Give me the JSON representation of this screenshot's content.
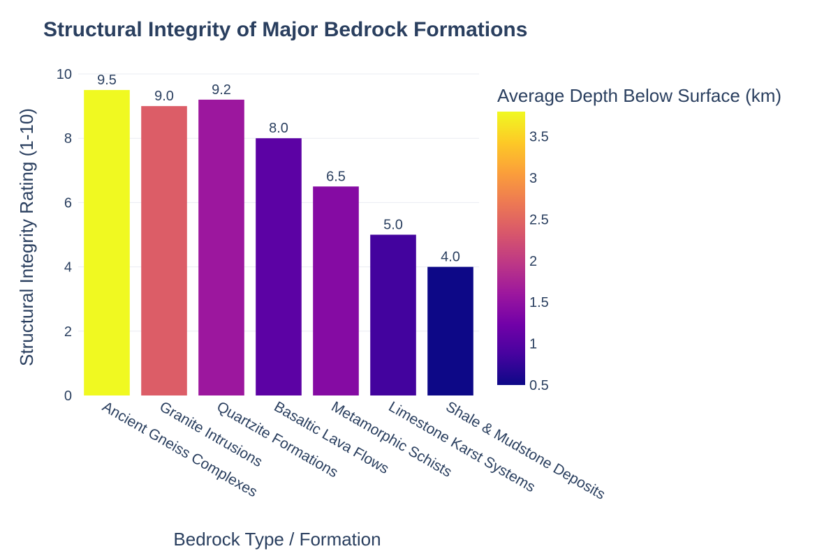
{
  "chart_data": {
    "type": "bar",
    "title": "Structural Integrity of Major Bedrock Formations",
    "xlabel": "Bedrock Type / Formation",
    "ylabel": "Structural Integrity Rating (1-10)",
    "ylim": [
      0,
      10
    ],
    "yticks": [
      "0",
      "2",
      "4",
      "6",
      "8",
      "10"
    ],
    "grid": true,
    "categories": [
      "Ancient Gneiss Complexes",
      "Granite Intrusions",
      "Quartzite Formations",
      "Basaltic Lava Flows",
      "Metamorphic Schists",
      "Limestone Karst Systems",
      "Shale & Mudstone Deposits"
    ],
    "values": [
      9.5,
      9.0,
      9.2,
      8.0,
      6.5,
      5.0,
      4.0
    ],
    "data_labels": [
      "9.5",
      "9.0",
      "9.2",
      "8.0",
      "6.5",
      "5.0",
      "4.0"
    ],
    "color_values": [
      3.8,
      2.4,
      1.6,
      1.05,
      1.4,
      0.85,
      0.5
    ],
    "colorscale": "Plasma",
    "colorbar": {
      "title": "Average Depth Below Surface (km)",
      "range": [
        0.5,
        3.8
      ],
      "ticks": [
        "0.5",
        "1",
        "1.5",
        "2",
        "2.5",
        "3",
        "3.5"
      ],
      "placement": "right"
    }
  }
}
